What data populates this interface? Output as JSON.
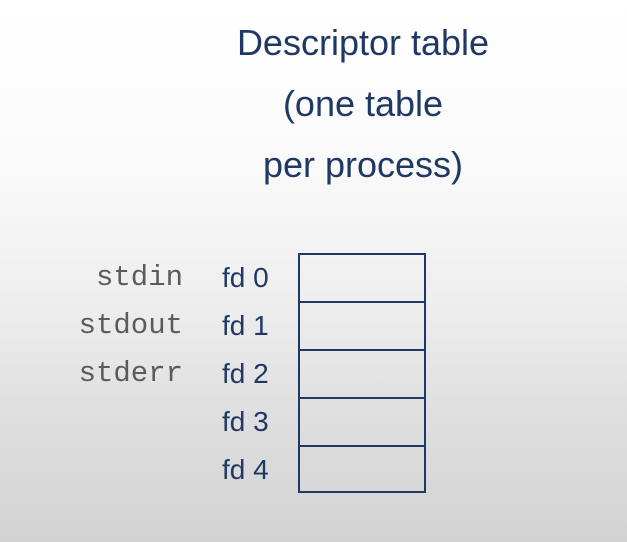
{
  "title": {
    "lines": [
      "Descriptor table",
      "(one table",
      "per process)"
    ]
  },
  "streams": [
    "stdin",
    "stdout",
    "stderr"
  ],
  "descriptors": [
    "fd 0",
    "fd 1",
    "fd 2",
    "fd 3",
    "fd 4"
  ],
  "colors": {
    "title": "#1f3864",
    "stream_label": "#5b5b5b",
    "table_border": "#1f3864"
  }
}
